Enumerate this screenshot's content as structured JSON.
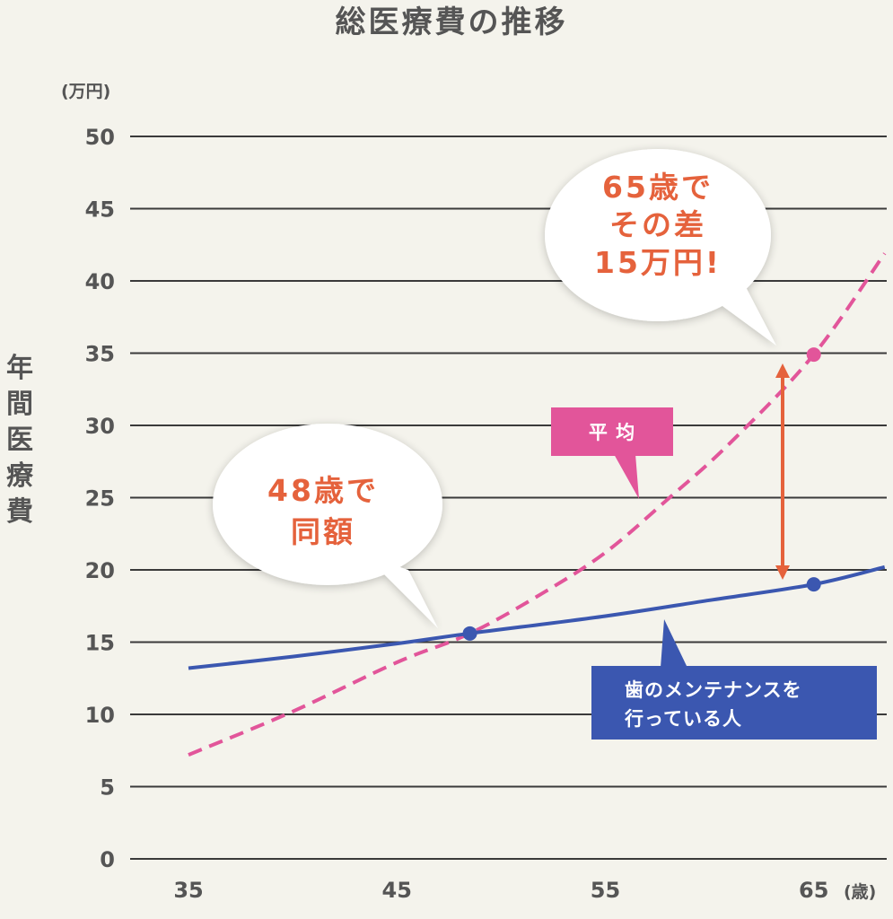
{
  "chart_data": {
    "type": "line",
    "title": "総医療費の推移",
    "y_unit": "(万円)",
    "x_unit": "(歳)",
    "ylabel": "年間医療費",
    "yticks": [
      0,
      5,
      10,
      15,
      20,
      25,
      30,
      35,
      40,
      45,
      50
    ],
    "xticks": [
      35,
      45,
      55,
      65
    ],
    "xlim": [
      32.2,
      68.5
    ],
    "ylim": [
      0,
      50
    ],
    "grid": true,
    "series": [
      {
        "name": "平均",
        "style": "dashed",
        "color": "#e2559a",
        "x": [
          35,
          40,
          45,
          48.5,
          52,
          55,
          58,
          61,
          65,
          68.4
        ],
        "y": [
          7.2,
          10.2,
          13.6,
          15.6,
          18.4,
          21.2,
          24.9,
          28.8,
          34.9,
          41.9
        ]
      },
      {
        "name": "歯のメンテナンスを行っている人",
        "style": "solid",
        "color": "#3b57b0",
        "x": [
          35,
          40,
          45,
          48.5,
          55,
          60,
          65,
          68.4
        ],
        "y": [
          13.2,
          14.0,
          14.9,
          15.6,
          16.8,
          17.9,
          19.0,
          20.2
        ]
      }
    ],
    "points": [
      {
        "x": 48.5,
        "y": 15.6,
        "color": "#3b57b0"
      },
      {
        "x": 65,
        "y": 19.0,
        "color": "#3b57b0"
      },
      {
        "x": 65,
        "y": 34.9,
        "color": "#e2559a"
      }
    ],
    "annotations": [
      {
        "lines": [
          "48歳で",
          "同額"
        ]
      },
      {
        "lines": [
          "65歳で",
          "その差",
          "15万円!"
        ]
      }
    ],
    "legend": [
      {
        "lines": [
          "平 均"
        ],
        "color": "#e2559a"
      },
      {
        "lines": [
          "歯のメンテナンスを",
          "行っている人"
        ],
        "color": "#3b57b0"
      }
    ]
  }
}
